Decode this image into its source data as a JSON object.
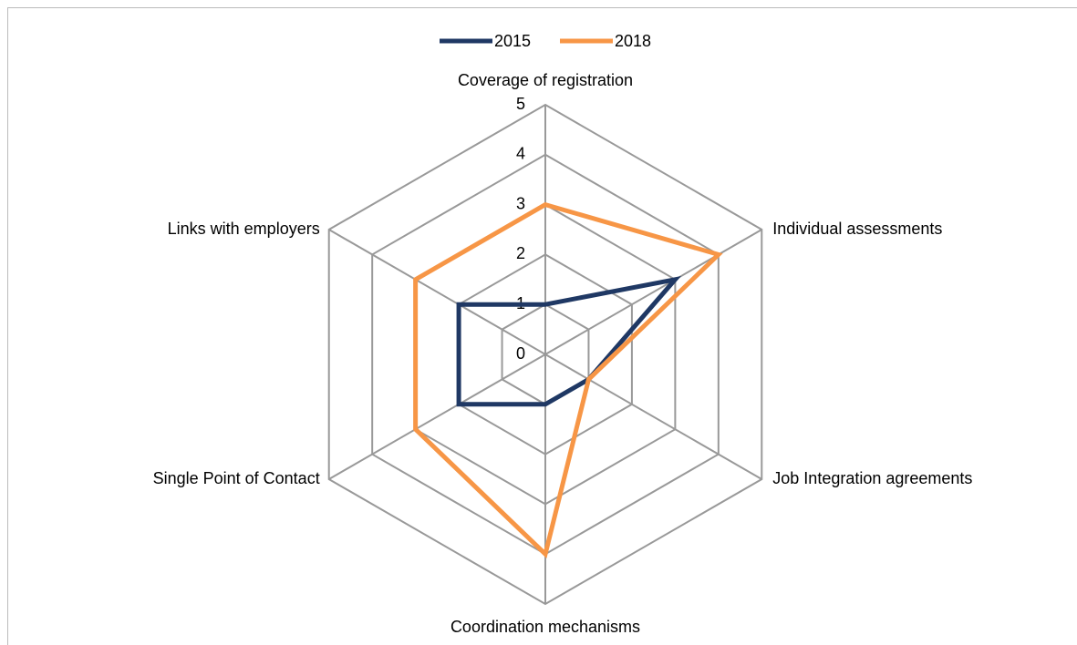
{
  "chart_data": {
    "type": "radar",
    "categories": [
      "Coverage of registration",
      "Individual assessments",
      "Job Integration agreements",
      "Coordination mechanisms",
      "Single Point of Contact",
      "Links with employers"
    ],
    "series": [
      {
        "name": "2015",
        "color": "#1f3864",
        "values": [
          1,
          3,
          1,
          1,
          2,
          2
        ]
      },
      {
        "name": "2018",
        "color": "#f79646",
        "values": [
          3,
          4,
          1,
          4,
          3,
          3
        ]
      }
    ],
    "rlim": [
      0,
      5
    ],
    "rticks": [
      0,
      1,
      2,
      3,
      4,
      5
    ],
    "grid": true,
    "legend": "top"
  }
}
